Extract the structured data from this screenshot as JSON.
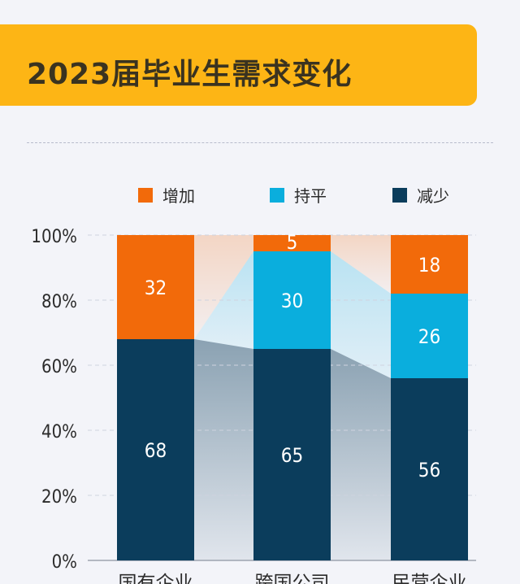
{
  "title": "2023届毕业生需求变化",
  "chart_data": {
    "type": "bar",
    "stacked": true,
    "categories": [
      "国有企业",
      "跨国公司",
      "民营企业"
    ],
    "series": [
      {
        "name": "减少",
        "color": "#0b3d5c",
        "values": [
          68,
          65,
          56
        ]
      },
      {
        "name": "持平",
        "color": "#0aaedd",
        "values": [
          0,
          30,
          26
        ]
      },
      {
        "name": "增加",
        "color": "#f26a0a",
        "values": [
          32,
          5,
          18
        ]
      }
    ],
    "legend_order": [
      "增加",
      "持平",
      "减少"
    ],
    "legend_placement": "top",
    "yticks": [
      "0%",
      "20%",
      "40%",
      "60%",
      "80%",
      "100%"
    ],
    "ylim": [
      0,
      100
    ],
    "grid": true
  }
}
